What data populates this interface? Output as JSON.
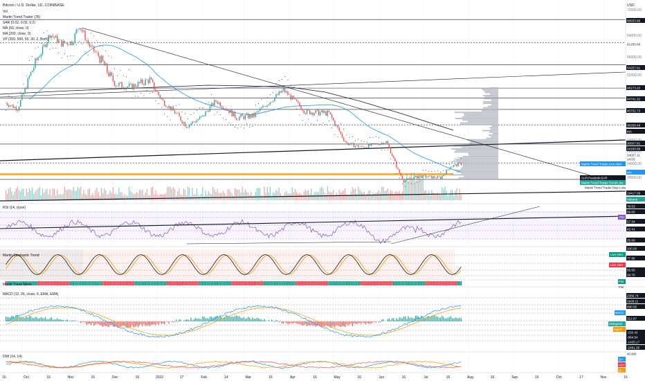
{
  "header": {
    "title": "Bitcoin / U.S. Dollar, 1D, COINBASE",
    "currency": "USD",
    "indicators": [
      "Vol",
      "Martin Trend Trader (35)",
      "SAR (0.02, 0.02, 0.2)",
      "MA (50, close, 0)",
      "MA (200, close, 0)",
      "VP (200, 500, 50, 30, 2, Both)"
    ]
  },
  "colors": {
    "up": "#26a69a",
    "down": "#ef5350",
    "ma50": "#2196f3",
    "ma200": "#131722",
    "sar": "#131722",
    "orange": "#ff9800",
    "rsi": "#7e57c2",
    "vp": "#9e9e9e",
    "teal_tag": "#26a69a",
    "blue_tag": "#2196f3",
    "red_tag": "#f23645",
    "green_tag": "#089981"
  },
  "price_axis": {
    "ticks": [
      "72000.00",
      "64000.00",
      "56000.00",
      "52000.00",
      "32000.00",
      "28000.00",
      "24000.00",
      "20000.00"
    ],
    "tags": [
      {
        "text": "68933.86",
        "kind": "dark"
      },
      {
        "text": "61205.66",
        "kind": "plain"
      },
      {
        "text": "54257.81",
        "kind": "dark"
      },
      {
        "text": "48173.20",
        "kind": "dark"
      },
      {
        "text": "44741.32",
        "kind": "dark"
      },
      {
        "text": "40732.73",
        "kind": "dark"
      },
      {
        "text": "36258.48",
        "kind": "dark"
      },
      {
        "text": "MA",
        "kind": "dark"
      },
      {
        "text": "30507.81",
        "kind": "dark"
      },
      {
        "text": "24180.88",
        "kind": "dark"
      },
      {
        "text": "24027.11",
        "kind": "plain"
      },
      {
        "text": "14:03",
        "kind": "plain"
      },
      {
        "text": "MA",
        "kind": "blue"
      },
      {
        "text": "19417.09",
        "kind": "dark"
      },
      {
        "text": "Volume",
        "kind": "teal"
      }
    ],
    "pane_tags": [
      {
        "text": "Martin Trend Trader:Line Alert",
        "kind": "blue"
      },
      {
        "text": "SAR:ParabolicSAR",
        "kind": "dark"
      },
      {
        "text": "Martin Trend Trader:Trend Line",
        "kind": "teal"
      },
      {
        "text": "Martin Trend Trader:Stop Loss",
        "kind": "plain"
      }
    ]
  },
  "rsi_pane": {
    "title": "RSI (14, close)",
    "tags": [
      "78.53",
      "69.60",
      "57.34",
      "42.41",
      "25.60"
    ],
    "rsi_tag": "RSI"
  },
  "stoch_pane": {
    "title": "Martin Stochastic Trend",
    "tags": [
      "100.00",
      "77.95",
      "55.55",
      "29.70"
    ],
    "live_alert_1": "Live Alert",
    "live_alert_2": "Live Alert"
  },
  "trend_meter": {
    "title": "Martin Trend Meter",
    "plot_tag": "Plot",
    "plot_tag2": "Plot"
  },
  "macd_pane": {
    "title": "MACD (12, 26, close, 9, EMA, EMA)",
    "tags": [
      "2366.74",
      "1928.11",
      "890.55",
      "312.67",
      "-232.42",
      "-864.54",
      "-1425.17",
      "-2491.35"
    ],
    "macd_tag": "MACD",
    "histogram_tag": "Histogram",
    "signal_tag": "Signal"
  },
  "dmi_pane": {
    "title": "DMI (14, 14)",
    "tags": [
      "40.000",
      "DI+",
      "ADX",
      "DI-"
    ]
  },
  "time_axis": [
    "16",
    "Oct",
    "16",
    "Nov",
    "16",
    "Dec",
    "16",
    "2022",
    "17",
    "Feb",
    "14",
    "Mar",
    "16",
    "Apr",
    "16",
    "May",
    "16",
    "Jun",
    "16",
    "Jul",
    "16",
    "Aug",
    "16",
    "Sep",
    "16",
    "Oct",
    "17",
    "Nov",
    "16"
  ],
  "chart_data": {
    "type": "line",
    "title": "Bitcoin / U.S. Dollar, 1D, COINBASE",
    "x_range": [
      "2021-09-16",
      "2022-11-16"
    ],
    "ylim": [
      18000,
      74000
    ],
    "price_series": [
      {
        "date": "2021-09-20",
        "close": 43000
      },
      {
        "date": "2021-09-28",
        "close": 41000
      },
      {
        "date": "2021-10-06",
        "close": 51500
      },
      {
        "date": "2021-10-14",
        "close": 57500
      },
      {
        "date": "2021-10-20",
        "close": 64500
      },
      {
        "date": "2021-10-28",
        "close": 61000
      },
      {
        "date": "2021-11-04",
        "close": 61500
      },
      {
        "date": "2021-11-09",
        "close": 67500
      },
      {
        "date": "2021-11-16",
        "close": 60000
      },
      {
        "date": "2021-11-26",
        "close": 54000
      },
      {
        "date": "2021-12-04",
        "close": 49200
      },
      {
        "date": "2021-12-14",
        "close": 48500
      },
      {
        "date": "2021-12-27",
        "close": 50600
      },
      {
        "date": "2022-01-05",
        "close": 43500
      },
      {
        "date": "2022-01-21",
        "close": 36000
      },
      {
        "date": "2022-02-01",
        "close": 38500
      },
      {
        "date": "2022-02-10",
        "close": 43800
      },
      {
        "date": "2022-02-24",
        "close": 38300
      },
      {
        "date": "2022-03-08",
        "close": 38800
      },
      {
        "date": "2022-03-28",
        "close": 47500
      },
      {
        "date": "2022-04-12",
        "close": 40000
      },
      {
        "date": "2022-04-28",
        "close": 39500
      },
      {
        "date": "2022-05-10",
        "close": 30800
      },
      {
        "date": "2022-05-20",
        "close": 29300
      },
      {
        "date": "2022-06-06",
        "close": 31300
      },
      {
        "date": "2022-06-14",
        "close": 22000
      },
      {
        "date": "2022-06-18",
        "close": 19000
      },
      {
        "date": "2022-06-28",
        "close": 20300
      },
      {
        "date": "2022-07-13",
        "close": 19900
      },
      {
        "date": "2022-07-20",
        "close": 23200
      },
      {
        "date": "2022-07-28",
        "close": 24000
      }
    ],
    "horizontal_levels": [
      68933.86,
      61205.66,
      54257.81,
      48173.2,
      44741.32,
      40732.73,
      36258.48,
      30507.81,
      24180.88,
      19417.09
    ]
  }
}
